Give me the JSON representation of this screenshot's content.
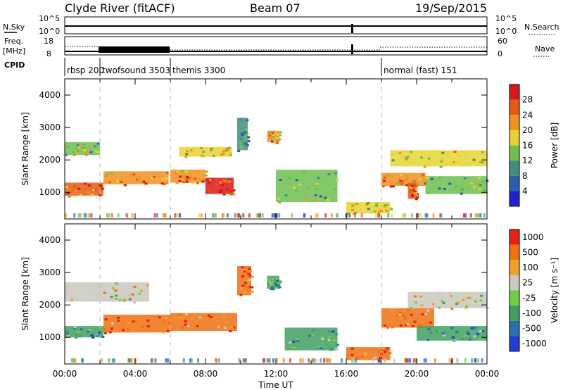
{
  "header": {
    "station": "Clyde River (fitACF)",
    "beam": "Beam 07",
    "date": "19/Sep/2015"
  },
  "top_panels": {
    "nsky_label": "N.Sky",
    "nsky_ticks": [
      "10^5",
      "10^0"
    ],
    "nsearch_label": "N.Search",
    "nsearch_ticks": [
      "10^5",
      "10^0"
    ],
    "freq_label": "Freq.",
    "freq_unit": "[MHz]",
    "freq_ticks": [
      "18",
      "8"
    ],
    "nave_label": "Nave",
    "nave_ticks": [
      "60",
      "0"
    ],
    "cpid_label": "CPID"
  },
  "cpid_segments": [
    {
      "label": "rbsp 200",
      "start_hour": 0
    },
    {
      "label": "twofsound 3503",
      "start_hour": 2
    },
    {
      "label": "themis 3300",
      "start_hour": 6
    },
    {
      "label": "normal (fast) 151",
      "start_hour": 18
    }
  ],
  "chart_data": [
    {
      "type": "heatmap",
      "name": "power-panel",
      "ylabel": "Slant Range [km]",
      "xlabel": "",
      "x_range_hours": [
        0,
        24
      ],
      "ylim": [
        180,
        4500
      ],
      "yticks": [
        "1000",
        "2000",
        "3000",
        "4000"
      ],
      "colorbar_label": "Power [dB]",
      "colorbar_ticks": [
        "4",
        "8",
        "12",
        "16",
        "20",
        "24",
        "28"
      ],
      "colorbar_colors": [
        "#1f1fd8",
        "#2a5fb0",
        "#3f8f80",
        "#6fbf4f",
        "#e6d330",
        "#f09020",
        "#e65a10",
        "#d81818"
      ],
      "bands": [
        {
          "x": [
            0.0,
            2.0
          ],
          "y": [
            2150,
            2550
          ],
          "level": 3
        },
        {
          "x": [
            0.0,
            2.2
          ],
          "y": [
            900,
            1300
          ],
          "level": 6
        },
        {
          "x": [
            2.2,
            5.9
          ],
          "y": [
            1250,
            1650
          ],
          "level": 5
        },
        {
          "x": [
            6.0,
            8.0
          ],
          "y": [
            1300,
            1700
          ],
          "level": 5
        },
        {
          "x": [
            6.5,
            9.5
          ],
          "y": [
            2100,
            2400
          ],
          "level": 4
        },
        {
          "x": [
            8.0,
            9.6
          ],
          "y": [
            950,
            1450
          ],
          "level": 7
        },
        {
          "x": [
            9.8,
            10.4
          ],
          "y": [
            2300,
            3300
          ],
          "level": 2
        },
        {
          "x": [
            11.5,
            12.2
          ],
          "y": [
            2550,
            2900
          ],
          "level": 5
        },
        {
          "x": [
            12.0,
            15.5
          ],
          "y": [
            700,
            1700
          ],
          "level": 3
        },
        {
          "x": [
            16.0,
            18.5
          ],
          "y": [
            350,
            700
          ],
          "level": 4
        },
        {
          "x": [
            18.0,
            20.5
          ],
          "y": [
            1200,
            1600
          ],
          "level": 5
        },
        {
          "x": [
            18.5,
            24.0
          ],
          "y": [
            1800,
            2300
          ],
          "level": 4
        },
        {
          "x": [
            20.5,
            24.0
          ],
          "y": [
            950,
            1500
          ],
          "level": 3
        },
        {
          "x": [
            19.5,
            20.0
          ],
          "y": [
            800,
            1300
          ],
          "level": 6
        }
      ]
    },
    {
      "type": "heatmap",
      "name": "velocity-panel",
      "ylabel": "Slant Range [km]",
      "xlabel": "Time UT",
      "x_range_hours": [
        0,
        24
      ],
      "xticks": [
        "00:00",
        "04:00",
        "08:00",
        "12:00",
        "16:00",
        "20:00",
        "00:00"
      ],
      "ylim": [
        180,
        4500
      ],
      "yticks": [
        "1000",
        "2000",
        "3000",
        "4000"
      ],
      "colorbar_label": "Velocity [m s⁻¹]",
      "colorbar_ticks": [
        "1000",
        "500",
        "100",
        "25",
        "-25",
        "-100",
        "-500",
        "-1000"
      ],
      "colorbar_colors": [
        "#1f3fd8",
        "#2a70b0",
        "#3f9f5f",
        "#6fcf3f",
        "#c8c8c0",
        "#f0a020",
        "#f07010",
        "#e82010"
      ],
      "bands": [
        {
          "x": [
            0.0,
            4.8
          ],
          "y": [
            2100,
            2700
          ],
          "level": 4
        },
        {
          "x": [
            0.0,
            2.2
          ],
          "y": [
            1000,
            1350
          ],
          "level": 2
        },
        {
          "x": [
            2.2,
            6.0
          ],
          "y": [
            1150,
            1700
          ],
          "level": 6
        },
        {
          "x": [
            6.0,
            9.8
          ],
          "y": [
            1200,
            1750
          ],
          "level": 6
        },
        {
          "x": [
            9.8,
            10.6
          ],
          "y": [
            2300,
            3200
          ],
          "level": 6
        },
        {
          "x": [
            11.5,
            12.2
          ],
          "y": [
            2500,
            2900
          ],
          "level": 2
        },
        {
          "x": [
            12.5,
            15.5
          ],
          "y": [
            600,
            1300
          ],
          "level": 2
        },
        {
          "x": [
            16.0,
            18.5
          ],
          "y": [
            300,
            700
          ],
          "level": 6
        },
        {
          "x": [
            18.0,
            21.0
          ],
          "y": [
            1300,
            1900
          ],
          "level": 6
        },
        {
          "x": [
            19.5,
            24.0
          ],
          "y": [
            1900,
            2400
          ],
          "level": 4
        },
        {
          "x": [
            20.0,
            24.0
          ],
          "y": [
            900,
            1350
          ],
          "level": 2
        }
      ]
    }
  ]
}
